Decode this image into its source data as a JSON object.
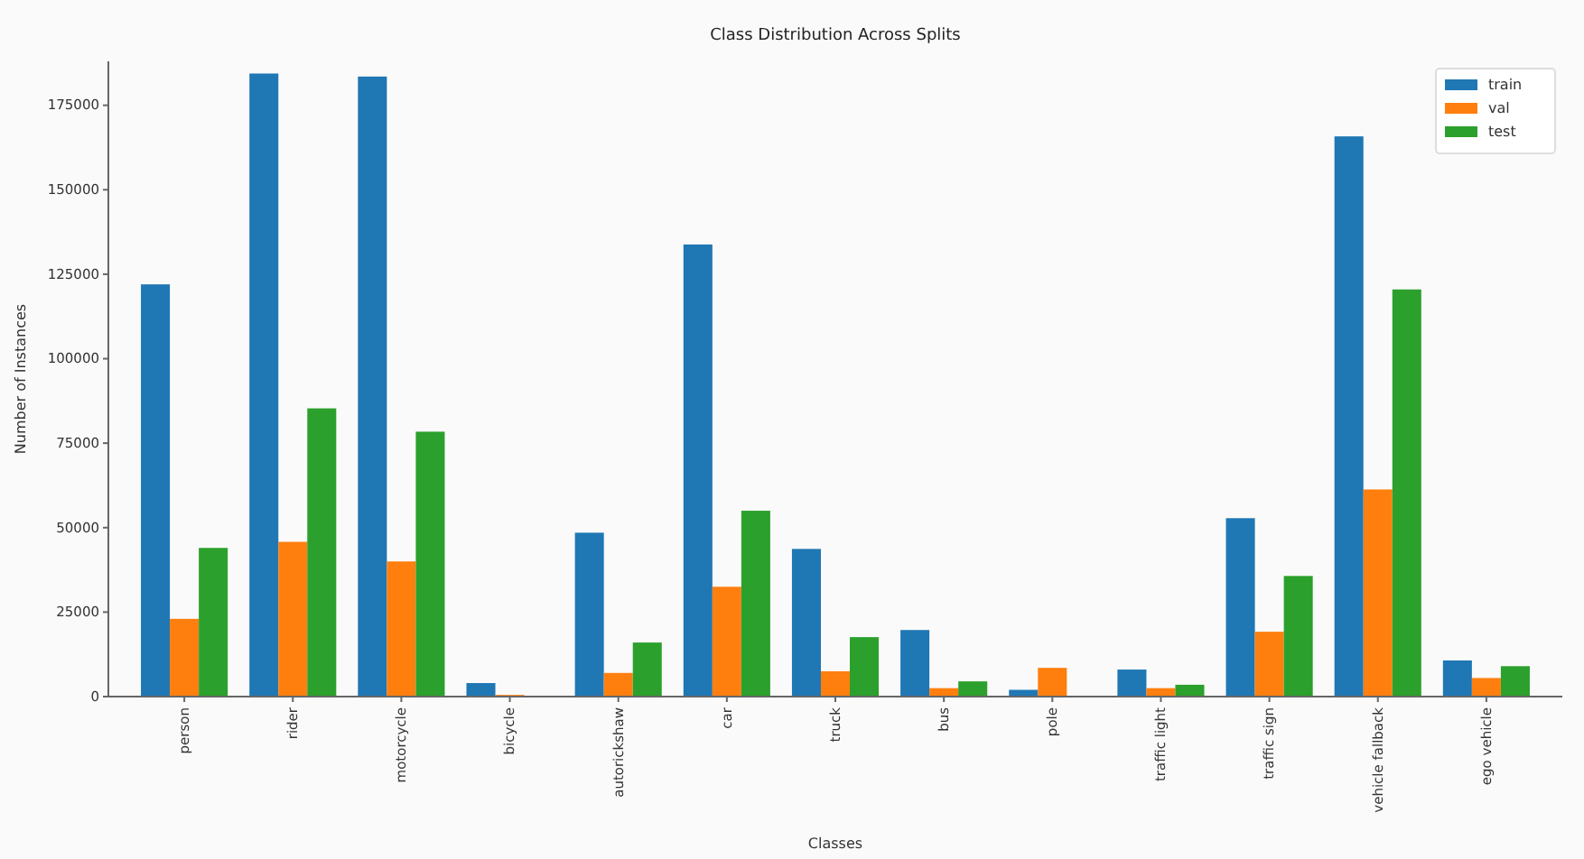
{
  "chart_data": {
    "type": "bar",
    "title": "Class Distribution Across Splits",
    "xlabel": "Classes",
    "ylabel": "Number of Instances",
    "categories": [
      "person",
      "rider",
      "motorcycle",
      "bicycle",
      "autorickshaw",
      "car",
      "truck",
      "bus",
      "pole",
      "traffic light",
      "traffic sign",
      "vehicle fallback",
      "ego vehicle"
    ],
    "series": [
      {
        "name": "train",
        "color": "#1f77b4",
        "values": [
          122000,
          184400,
          183500,
          4000,
          48500,
          133800,
          43700,
          19700,
          2000,
          8000,
          52800,
          165800,
          10700
        ]
      },
      {
        "name": "val",
        "color": "#ff7f0e",
        "values": [
          23000,
          45800,
          40000,
          500,
          7000,
          32500,
          7500,
          2500,
          8500,
          2500,
          19200,
          61300,
          5500
        ]
      },
      {
        "name": "test",
        "color": "#2ca02c",
        "values": [
          44000,
          85300,
          78400,
          null,
          16000,
          55000,
          17600,
          4500,
          0,
          3500,
          35700,
          120500,
          9000
        ]
      }
    ],
    "ylim": [
      0,
      188000
    ],
    "yticks": [
      0,
      25000,
      50000,
      75000,
      100000,
      125000,
      150000,
      175000
    ],
    "grid": false,
    "legend": "top right"
  }
}
